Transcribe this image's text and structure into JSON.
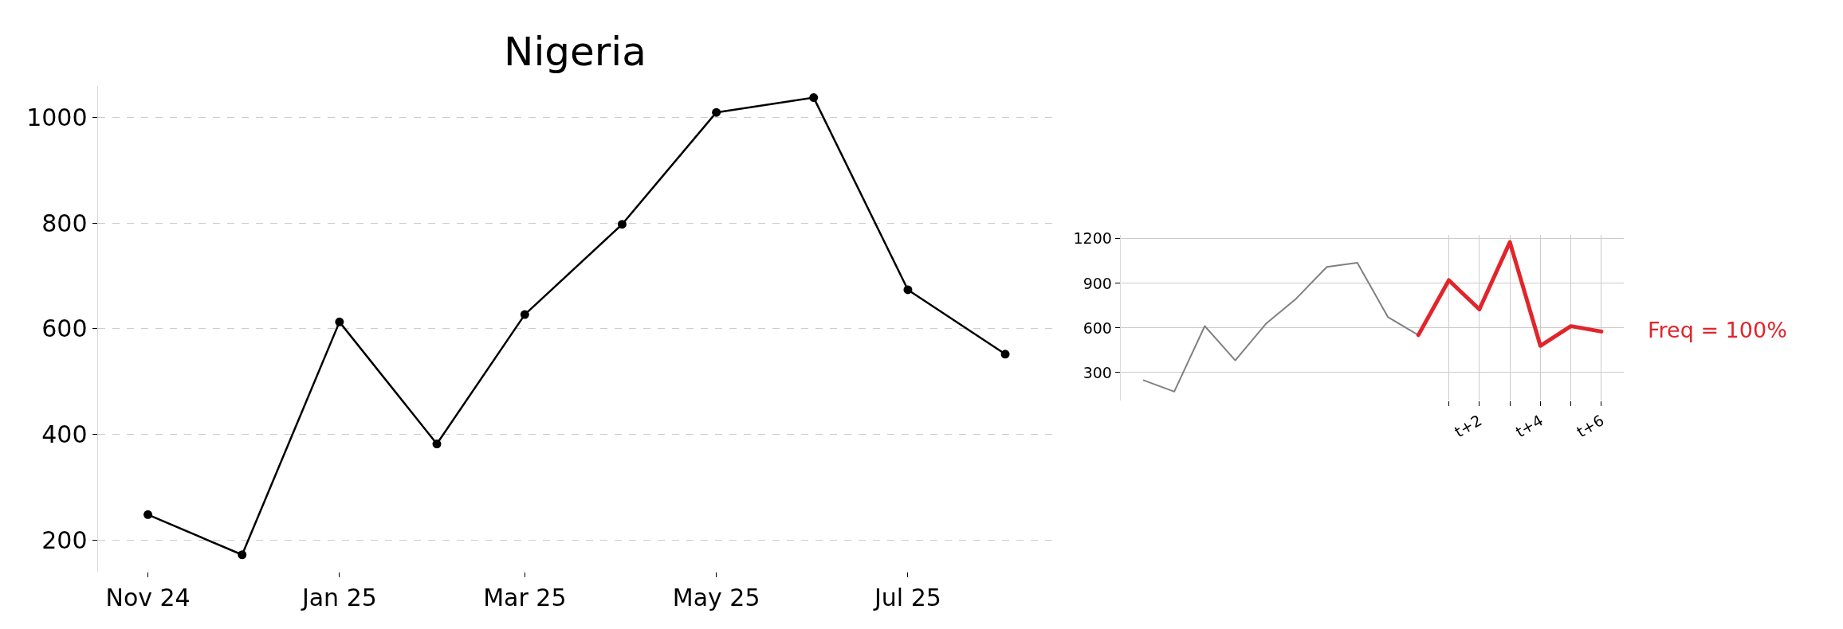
{
  "chart_data": [
    {
      "type": "line",
      "title": "Nigeria",
      "x": [
        "2024-11",
        "2024-12",
        "2025-01",
        "2025-02",
        "2025-03",
        "2025-04",
        "2025-05",
        "2025-06",
        "2025-07",
        "2025-08"
      ],
      "series": [
        {
          "color": "#000000",
          "values": [
            248,
            172,
            613,
            382,
            627,
            798,
            1010,
            1038,
            674,
            552
          ]
        }
      ],
      "xlim": [
        "2024-10-16",
        "2025-08-16"
      ],
      "xticks": [
        {
          "value": "2024-11",
          "label": "Nov 24"
        },
        {
          "value": "2025-01",
          "label": "Jan 25"
        },
        {
          "value": "2025-03",
          "label": "Mar 25"
        },
        {
          "value": "2025-05",
          "label": "May 25"
        },
        {
          "value": "2025-07",
          "label": "Jul 25"
        }
      ],
      "ylim": [
        140,
        1060
      ],
      "yticks": [
        200,
        400,
        600,
        800,
        1000
      ],
      "grid": "y",
      "marker": "circle",
      "line_style": "solid"
    },
    {
      "type": "line",
      "annotations": [
        "Freq = 100%"
      ],
      "categories": [
        null,
        null,
        null,
        null,
        null,
        null,
        null,
        null,
        null,
        null,
        null,
        "t+2",
        null,
        "t+4",
        null,
        "t+6"
      ],
      "series": [
        {
          "color": "#808080",
          "values": [
            248,
            172,
            613,
            382,
            627,
            798,
            1010,
            1038,
            674,
            552,
            null,
            null,
            null,
            null,
            null,
            null
          ]
        },
        {
          "color": "#e0262b",
          "values": [
            null,
            null,
            null,
            null,
            null,
            null,
            null,
            null,
            null,
            552,
            921,
            725,
            1177,
            480,
            612,
            576
          ]
        }
      ],
      "ylim": [
        110,
        1225
      ],
      "yticks": [
        300,
        600,
        900,
        1200
      ],
      "grid": true,
      "marker": "none"
    }
  ]
}
